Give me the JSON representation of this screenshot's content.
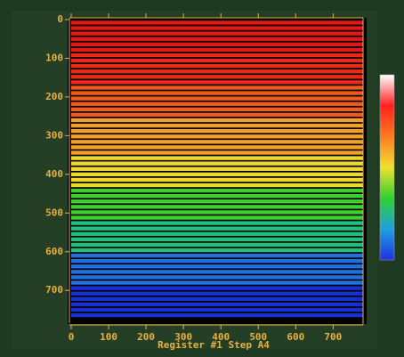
{
  "chart_data": {
    "type": "stripes",
    "xlabel": "Register #1 Step A4",
    "xlim": [
      0,
      780
    ],
    "ylim": [
      0,
      780
    ],
    "xticks": [
      0,
      100,
      200,
      300,
      400,
      500,
      600,
      700
    ],
    "yticks": [
      0,
      100,
      200,
      300,
      400,
      500,
      600,
      700
    ],
    "rows": [
      8,
      22,
      36,
      50,
      64,
      78,
      92,
      106,
      120,
      134,
      148,
      162,
      176,
      190,
      204,
      218,
      232,
      246,
      260,
      274,
      288,
      302,
      316,
      330,
      344,
      358,
      372,
      386,
      400,
      414,
      428,
      442,
      456,
      470,
      484,
      498,
      512,
      526,
      540,
      554,
      568,
      582,
      596,
      610,
      624,
      638,
      652,
      666,
      680,
      694,
      708,
      722,
      736,
      750,
      764
    ],
    "colormap": [
      "#e01818",
      "#e82a18",
      "#f05a1c",
      "#f4a024",
      "#ecd830",
      "#3cd030",
      "#1ec080",
      "#2070e0",
      "#1830d0"
    ],
    "colorbar_colors": [
      "#ffffff",
      "#ff2020",
      "#ff7a20",
      "#f0e030",
      "#30d030",
      "#20a0e0",
      "#2030e0"
    ]
  }
}
